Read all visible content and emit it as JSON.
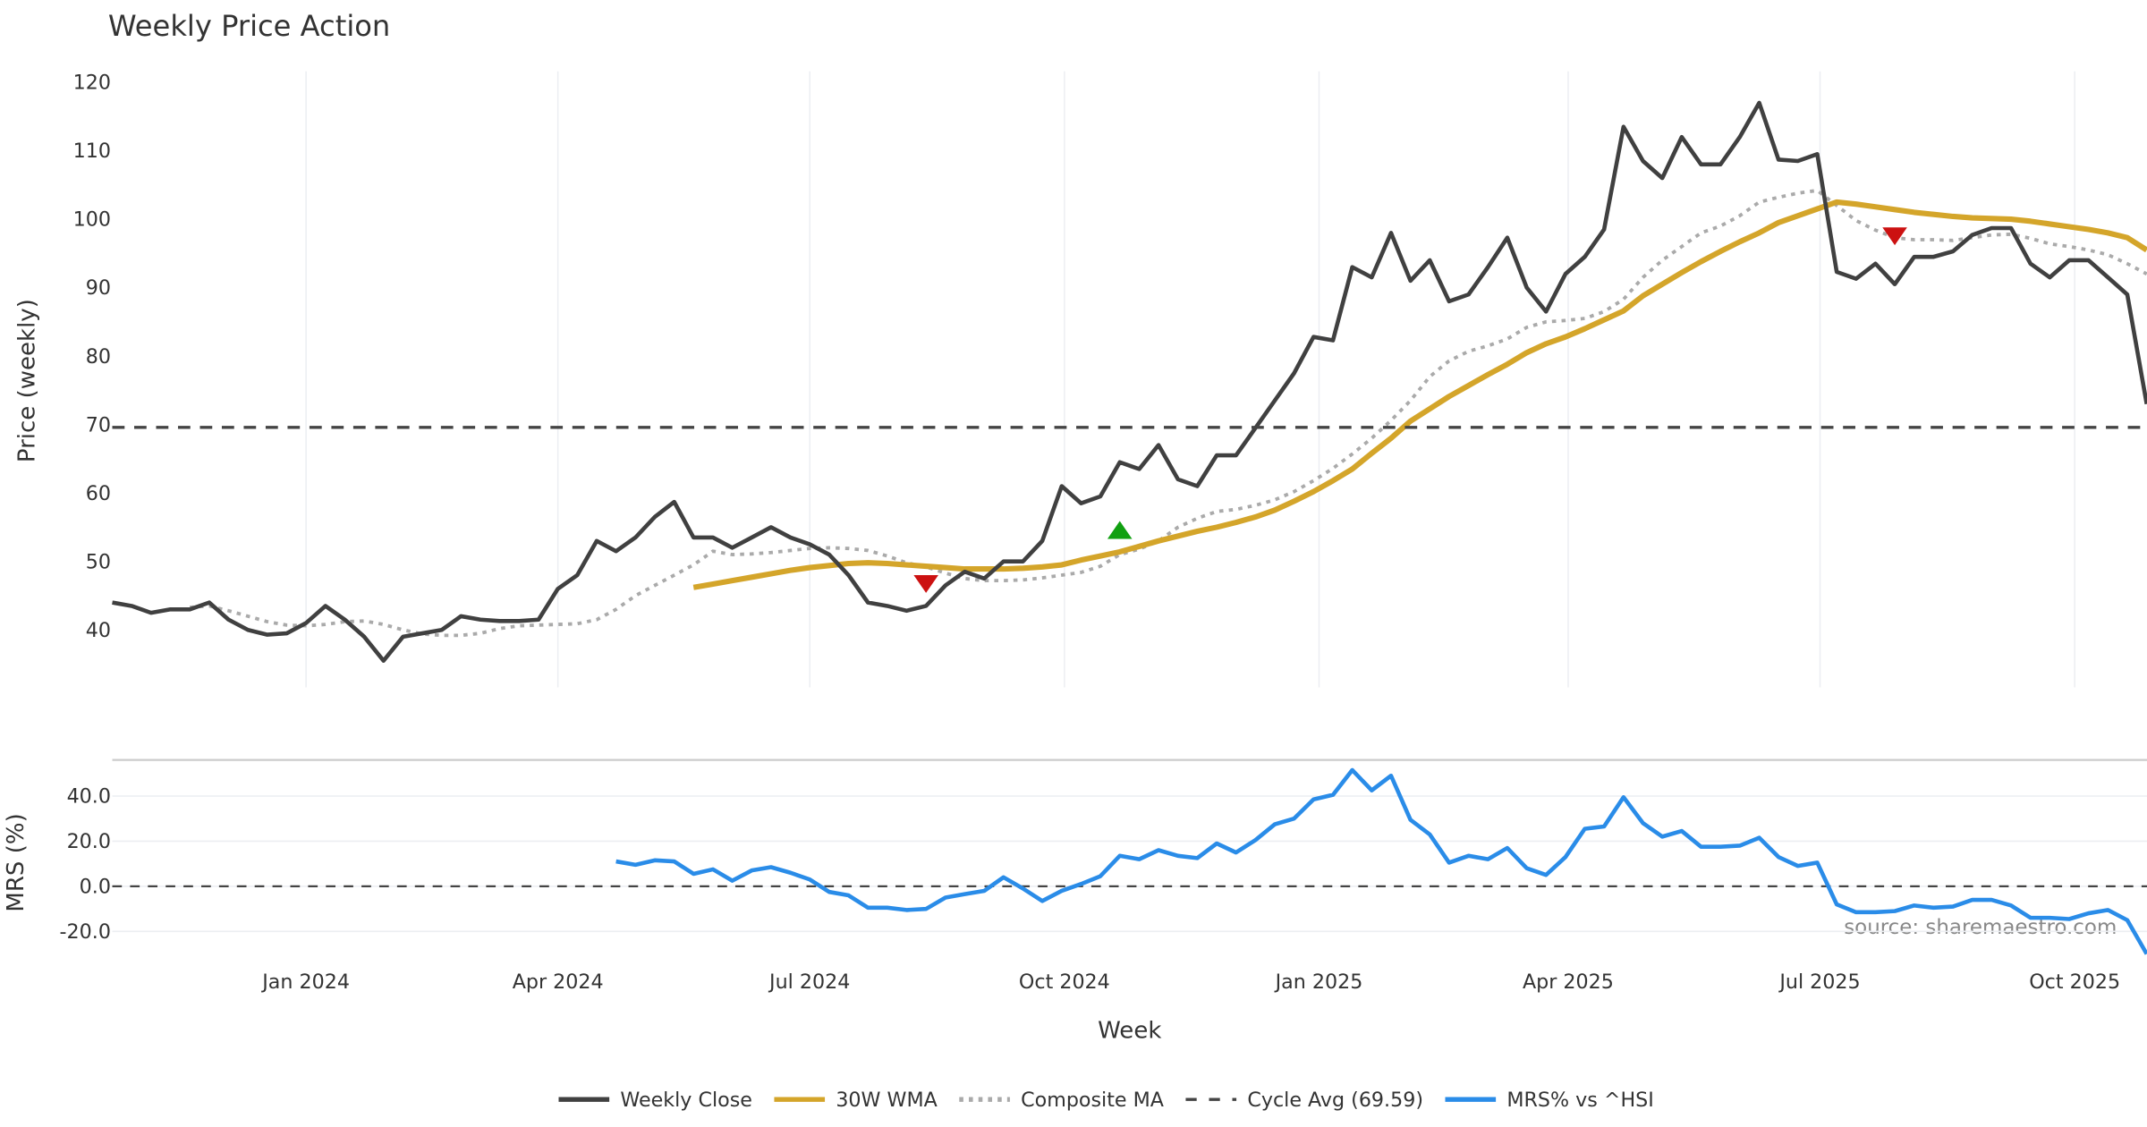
{
  "chart_data": [
    {
      "type": "line",
      "title": "Weekly Price Action",
      "ylabel": "Price (weekly)",
      "ylim": [
        31.6,
        121.6
      ],
      "yticks": [
        40,
        50,
        60,
        70,
        80,
        90,
        100,
        110,
        120
      ],
      "x_start": "2023-10-23",
      "x_step_days": 7,
      "grid": "vertical",
      "series": [
        {
          "name": "Weekly Close",
          "color": "#404040",
          "start_index": 0,
          "values": [
            44,
            43.5,
            42.5,
            43,
            43,
            44,
            41.5,
            40,
            39.3,
            39.5,
            41,
            43.5,
            41.5,
            39,
            35.5,
            39,
            39.5,
            40,
            42,
            41.5,
            41.3,
            41.3,
            41.5,
            46,
            48,
            53,
            51.5,
            53.5,
            56.5,
            58.7,
            53.5,
            53.5,
            52,
            53.5,
            55,
            53.5,
            52.5,
            51,
            48,
            44,
            43.5,
            42.8,
            43.5,
            46.5,
            48.5,
            47.5,
            50,
            50,
            53,
            61,
            58.5,
            59.5,
            64.5,
            63.5,
            67,
            62,
            61,
            65.5,
            65.5,
            69.5,
            73.5,
            77.5,
            82.8,
            82.3,
            93,
            91.5,
            98,
            91,
            94,
            88,
            89,
            93,
            97.3,
            90,
            86.5,
            92,
            94.5,
            98.5,
            113.5,
            108.5,
            106,
            112,
            108,
            108,
            112,
            117,
            108.7,
            108.5,
            109.5,
            92.3,
            91.3,
            93.5,
            90.5,
            94.5,
            94.5,
            95.3,
            97.7,
            98.7,
            98.7,
            93.5,
            91.5,
            94,
            94,
            91.5,
            89,
            73
          ]
        },
        {
          "name": "30W WMA",
          "color": "#d4a52a",
          "start_index": 30,
          "values": [
            46.2,
            46.7,
            47.2,
            47.7,
            48.2,
            48.7,
            49.1,
            49.4,
            49.7,
            49.8,
            49.7,
            49.5,
            49.3,
            49.1,
            48.9,
            48.9,
            48.9,
            49,
            49.2,
            49.5,
            50.2,
            50.8,
            51.4,
            52.2,
            53,
            53.7,
            54.4,
            55,
            55.7,
            56.5,
            57.5,
            58.8,
            60.2,
            61.8,
            63.5,
            65.8,
            68,
            70.5,
            72.3,
            74.1,
            75.7,
            77.3,
            78.8,
            80.5,
            81.8,
            82.8,
            84,
            85.3,
            86.6,
            88.8,
            90.5,
            92.2,
            93.8,
            95.3,
            96.7,
            98,
            99.5,
            100.5,
            101.5,
            102.5,
            102.2,
            101.8,
            101.4,
            101,
            100.7,
            100.4,
            100.2,
            100.1,
            100,
            99.7,
            99.3,
            98.9,
            98.5,
            98,
            97.3,
            95.5
          ]
        },
        {
          "name": "Composite MA",
          "color": "#aaaaaa",
          "start_index": 4,
          "values": [
            43.3,
            43.5,
            42.8,
            42,
            41.2,
            40.7,
            40.6,
            40.8,
            41.2,
            41.3,
            40.8,
            40,
            39.4,
            39.2,
            39.2,
            39.5,
            40.2,
            40.6,
            40.7,
            40.8,
            40.9,
            41.5,
            43,
            45,
            46.5,
            48,
            49.5,
            51.5,
            51,
            51.1,
            51.3,
            51.6,
            51.9,
            52,
            51.9,
            51.6,
            50.8,
            49.8,
            49.2,
            48.3,
            47.5,
            47.2,
            47.2,
            47.3,
            47.6,
            48,
            48.4,
            49.3,
            51,
            51.8,
            53,
            55,
            56.3,
            57.3,
            57.6,
            58.2,
            59,
            60.2,
            61.8,
            63.6,
            65.7,
            68,
            70.6,
            73.5,
            77,
            79.3,
            80.7,
            81.5,
            82.5,
            84.2,
            85,
            85.2,
            85.5,
            86.5,
            88.3,
            91.5,
            94,
            96,
            98,
            99,
            100.5,
            102.5,
            103.2,
            103.8,
            104.2,
            102,
            99.8,
            98.4,
            97.3,
            97,
            97,
            96.9,
            97.3,
            97.7,
            97.8,
            97.2,
            96.4,
            96,
            95.5,
            94.8,
            93.5,
            92
          ]
        }
      ],
      "reference_line": {
        "name": "Cycle Avg (69.59)",
        "value": 69.59,
        "color": "#444444"
      },
      "markers": [
        {
          "type": "sell",
          "index": 42,
          "value": 46.8,
          "color": "#cc1111"
        },
        {
          "type": "buy",
          "index": 52,
          "value": 54.5,
          "color": "#11a011"
        },
        {
          "type": "sell",
          "index": 92,
          "value": 97.6,
          "color": "#cc1111"
        }
      ]
    },
    {
      "type": "line",
      "ylabel": "MRS (%)",
      "ylim": [
        -32,
        56
      ],
      "yticks": [
        -20,
        0,
        20,
        40
      ],
      "ytick_labels": [
        "-20.0",
        "0.0",
        "20.0",
        "40.0"
      ],
      "xlabel": "Week",
      "xticks": [
        {
          "date": "2024-01-01",
          "label": "Jan 2024"
        },
        {
          "date": "2024-04-01",
          "label": "Apr 2024"
        },
        {
          "date": "2024-07-01",
          "label": "Jul 2024"
        },
        {
          "date": "2024-10-01",
          "label": "Oct 2024"
        },
        {
          "date": "2025-01-01",
          "label": "Jan 2025"
        },
        {
          "date": "2025-04-01",
          "label": "Apr 2025"
        },
        {
          "date": "2025-07-01",
          "label": "Jul 2025"
        },
        {
          "date": "2025-10-01",
          "label": "Oct 2025"
        }
      ],
      "series": [
        {
          "name": "MRS% vs ^HSI",
          "color": "#2a8ce8",
          "start_index": 26,
          "values": [
            11,
            9.5,
            11.5,
            11,
            5.5,
            7.5,
            2.5,
            7,
            8.5,
            6,
            3,
            -2.5,
            -4,
            -9.5,
            -9.5,
            -10.5,
            -10,
            -5,
            -3.5,
            -2,
            4,
            -1,
            -6.5,
            -2,
            1,
            4.5,
            13.5,
            12,
            16,
            13.5,
            12.5,
            19,
            15,
            20.5,
            27.5,
            30,
            38.5,
            40.5,
            51.5,
            42.5,
            49,
            29.5,
            23,
            10.5,
            13.5,
            12,
            17,
            8,
            5,
            13,
            25.5,
            26.5,
            39.5,
            28,
            22,
            24.5,
            17.5,
            17.5,
            18,
            21.5,
            13,
            9,
            10.5,
            -8,
            -11.5,
            -11.5,
            -11,
            -8.5,
            -9.5,
            -9,
            -6,
            -6,
            -8.5,
            -14,
            -14,
            -14.5,
            -12,
            -10.5,
            -15,
            -30
          ]
        }
      ],
      "zero_line": 0
    }
  ],
  "source": "source: sharemaestro.com",
  "legend": [
    {
      "label": "Weekly Close",
      "color": "#404040",
      "style": "solid"
    },
    {
      "label": "30W WMA",
      "color": "#d4a52a",
      "style": "solid"
    },
    {
      "label": "Composite MA",
      "color": "#aaaaaa",
      "style": "dotted"
    },
    {
      "label": "Cycle Avg (69.59)",
      "color": "#444444",
      "style": "dashed"
    },
    {
      "label": "MRS% vs ^HSI",
      "color": "#2a8ce8",
      "style": "solid"
    }
  ]
}
